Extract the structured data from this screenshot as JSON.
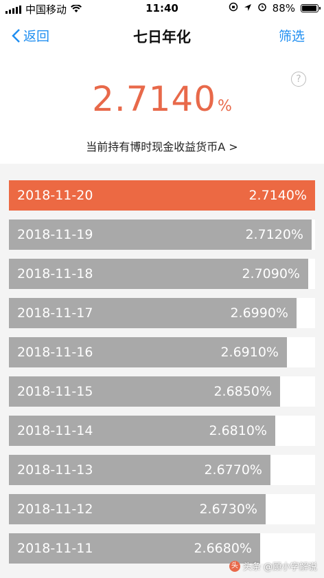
{
  "status_bar": {
    "carrier": "中国移动",
    "time": "11:40",
    "battery": "88%"
  },
  "nav": {
    "back_label": "返回",
    "title": "七日年化",
    "filter_label": "筛选"
  },
  "summary": {
    "rate_value": "2.7140",
    "rate_unit": "%",
    "fund_name": "当前持有博时现金收益货币A >"
  },
  "help_symbol": "?",
  "rows": [
    {
      "date": "2018-11-20",
      "rate": "2.7140%",
      "value": 2.714,
      "active": true
    },
    {
      "date": "2018-11-19",
      "rate": "2.7120%",
      "value": 2.712
    },
    {
      "date": "2018-11-18",
      "rate": "2.7090%",
      "value": 2.709
    },
    {
      "date": "2018-11-17",
      "rate": "2.6990%",
      "value": 2.699
    },
    {
      "date": "2018-11-16",
      "rate": "2.6910%",
      "value": 2.691
    },
    {
      "date": "2018-11-15",
      "rate": "2.6850%",
      "value": 2.685
    },
    {
      "date": "2018-11-14",
      "rate": "2.6810%",
      "value": 2.681
    },
    {
      "date": "2018-11-13",
      "rate": "2.6770%",
      "value": 2.677
    },
    {
      "date": "2018-11-12",
      "rate": "2.6730%",
      "value": 2.673
    },
    {
      "date": "2018-11-11",
      "rate": "2.6680%",
      "value": 2.668
    }
  ],
  "colors": {
    "accent": "#ec6943",
    "bar": "#a9a9a9",
    "link": "#1f8ef1"
  },
  "watermark": {
    "text": "头条 @顾小字解说"
  }
}
